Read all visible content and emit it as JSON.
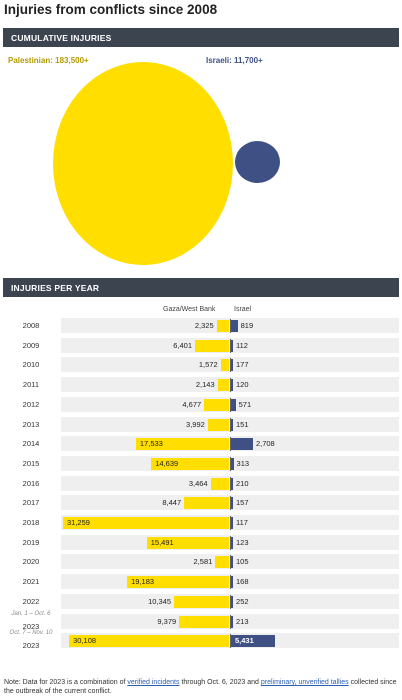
{
  "title": "Injuries from conflicts since 2008",
  "cumulative": {
    "header": "CUMULATIVE INJURIES",
    "palestinian_label": "Palestinian: 183,500+",
    "israeli_label": "Israeli: 11,700+",
    "palestinian_value": 183500,
    "israeli_value": 11700
  },
  "per_year": {
    "header": "INJURIES PER YEAR",
    "col_gaza": "Gaza/West Bank",
    "col_israel": "Israel"
  },
  "colors": {
    "palestinian": "#ffde00",
    "israeli": "#3f5085",
    "header_bg": "#3c4450"
  },
  "chart_data": {
    "type": "bar",
    "categories": [
      "2008",
      "2009",
      "2010",
      "2011",
      "2012",
      "2013",
      "2014",
      "2015",
      "2016",
      "2017",
      "2018",
      "2019",
      "2020",
      "2021",
      "2022",
      "2023",
      "2023"
    ],
    "category_sublabels": [
      "",
      "",
      "",
      "",
      "",
      "",
      "",
      "",
      "",
      "",
      "",
      "",
      "",
      "",
      "",
      "Jan. 1 – Oct. 6",
      "Oct. 7 – Nov. 10"
    ],
    "series": [
      {
        "name": "Gaza/West Bank",
        "values": [
          2325,
          6401,
          1572,
          2143,
          4677,
          3992,
          17533,
          14639,
          3464,
          8447,
          31259,
          15491,
          2581,
          19183,
          10345,
          9379,
          30108
        ],
        "labels": [
          "2,325",
          "6,401",
          "1,572",
          "2,143",
          "4,677",
          "3,992",
          "17,533",
          "14,639",
          "3,464",
          "8,447",
          "31,259",
          "15,491",
          "2,581",
          "19,183",
          "10,345",
          "9,379",
          "30,108"
        ]
      },
      {
        "name": "Israel",
        "values": [
          819,
          112,
          177,
          120,
          571,
          151,
          2708,
          313,
          210,
          157,
          117,
          123,
          105,
          168,
          252,
          213,
          5431
        ],
        "labels": [
          "819",
          "112",
          "177",
          "120",
          "571",
          "151",
          "2,708",
          "313",
          "210",
          "157",
          "117",
          "123",
          "105",
          "168",
          "252",
          "213",
          "5,431"
        ]
      }
    ]
  },
  "note": {
    "prefix": "Note: Data for 2023 is a combination of ",
    "link1": "verified incidents",
    "middle": " through Oct. 6, 2023 and ",
    "link2": "preliminary, unverified tallies",
    "suffix": " collected since the outbreak of the current conflict."
  }
}
